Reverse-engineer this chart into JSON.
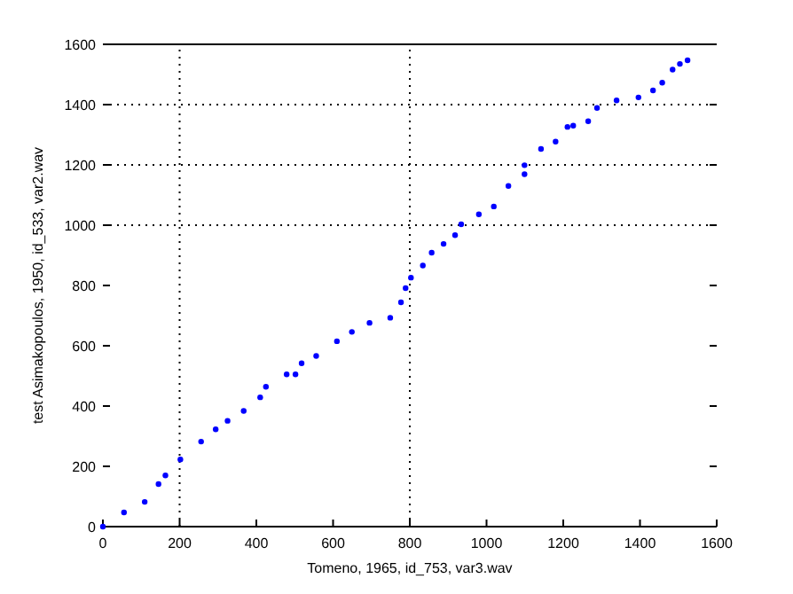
{
  "chart_data": {
    "type": "scatter",
    "xlabel": "Tomeno, 1965, id_753, var3.wav",
    "ylabel": "test Asimakopoulos, 1950, id_533, var2.wav",
    "x": [
      0,
      55,
      109,
      145,
      163,
      202,
      256,
      294,
      325,
      367,
      410,
      425,
      479,
      502,
      518,
      556,
      610,
      649,
      695,
      749,
      777,
      789,
      803,
      834,
      857,
      888,
      918,
      934,
      980,
      1019,
      1057,
      1099,
      1099,
      1142,
      1180,
      1211,
      1226,
      1265,
      1288,
      1339,
      1396,
      1434,
      1458,
      1485,
      1504,
      1524
    ],
    "series": [
      {
        "color": "#0000ff",
        "values": [
          0,
          47,
          82,
          141,
          170,
          223,
          282,
          323,
          351,
          384,
          429,
          464,
          505,
          505,
          542,
          566,
          615,
          646,
          676,
          693,
          744,
          791,
          826,
          866,
          909,
          938,
          967,
          1003,
          1036,
          1062,
          1130,
          1169,
          1199,
          1253,
          1277,
          1326,
          1330,
          1345,
          1389,
          1414,
          1424,
          1447,
          1473,
          1516,
          1535,
          1547
        ]
      }
    ],
    "xlim": [
      0,
      1600
    ],
    "xticks": [
      0,
      200,
      400,
      600,
      800,
      1000,
      1200,
      1400,
      1600
    ],
    "ylim": [
      0,
      1600
    ],
    "yticks": [
      0,
      200,
      400,
      600,
      800,
      1000,
      1200,
      1400,
      1600
    ],
    "marker": "circle",
    "ref_lines": [
      {
        "axis": "x",
        "value": 200,
        "line_style": "dotted",
        "color": "#000000"
      },
      {
        "axis": "x",
        "value": 800,
        "line_style": "dotted",
        "color": "#000000"
      },
      {
        "axis": "y",
        "value": 1000,
        "line_style": "dotted",
        "color": "#000000"
      },
      {
        "axis": "y",
        "value": 1200,
        "line_style": "dotted",
        "color": "#000000"
      },
      {
        "axis": "y",
        "value": 1400,
        "line_style": "dotted",
        "color": "#000000"
      }
    ]
  }
}
